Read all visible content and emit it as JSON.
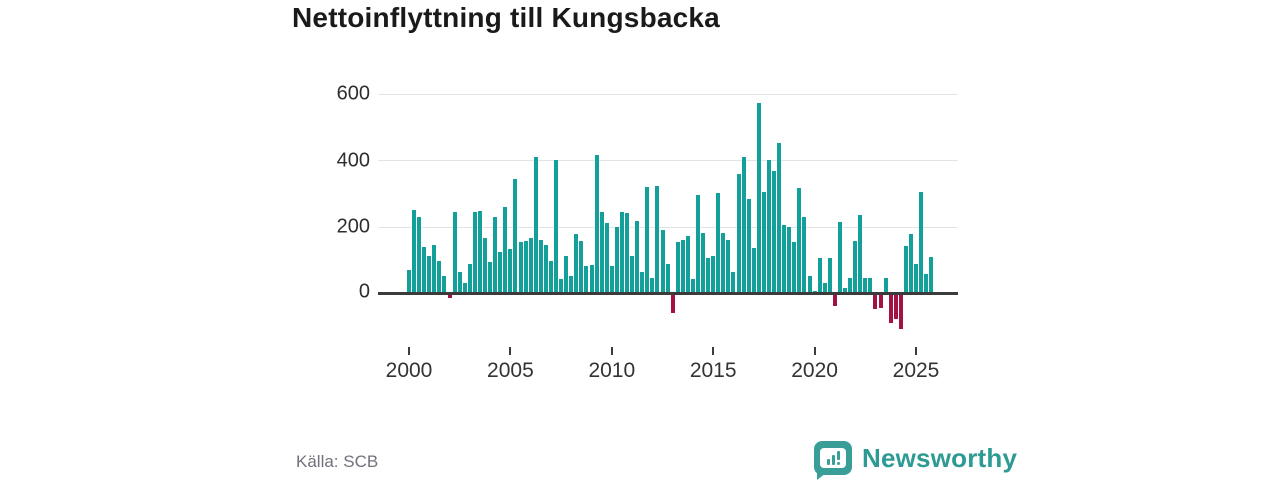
{
  "title": "Nettoinflyttning till Kungsbacka",
  "source": "Källa: SCB",
  "logo": {
    "brand": "Newsworthy"
  },
  "colors": {
    "positive_bar": "#13a09a",
    "negative_bar": "#a41244",
    "axis": "#3b3b3b",
    "grid": "#e3e3e3",
    "tick_text": "#333333",
    "muted_text": "#71717b",
    "brand": "#2d9a94",
    "title_text": "#1a1a1a"
  },
  "chart_data": {
    "type": "bar",
    "title": "Nettoinflyttning till Kungsbacka",
    "frequency": "quarterly",
    "start_quarter": "2000-Q1",
    "end_quarter": "2025-Q4",
    "values": [
      70,
      250,
      230,
      137,
      112,
      145,
      95,
      52,
      -12,
      245,
      63,
      30,
      88,
      245,
      247,
      165,
      94,
      230,
      123,
      260,
      132,
      342,
      152,
      155,
      165,
      410,
      160,
      145,
      95,
      400,
      42,
      110,
      50,
      178,
      155,
      82,
      85,
      415,
      245,
      212,
      82,
      200,
      245,
      240,
      110,
      218,
      62,
      320,
      45,
      322,
      190,
      88,
      -55,
      152,
      160,
      172,
      42,
      295,
      180,
      105,
      110,
      300,
      180,
      158,
      62,
      358,
      408,
      282,
      135,
      570,
      303,
      400,
      368,
      450,
      205,
      200,
      152,
      315,
      228,
      50,
      5,
      105,
      30,
      105,
      -35,
      215,
      15,
      45,
      155,
      235,
      45,
      45,
      -45,
      -40,
      45,
      -85,
      -75,
      -105,
      140,
      178,
      88,
      305,
      57,
      107
    ],
    "yticks": [
      0,
      200,
      400,
      600
    ],
    "ytick_labels": [
      "0",
      "200",
      "400",
      "600"
    ],
    "xticks": [
      2000,
      2005,
      2010,
      2015,
      2020,
      2025
    ],
    "xtick_labels": [
      "2000",
      "2005",
      "2010",
      "2015",
      "2020",
      "2025"
    ],
    "ylim": [
      -120,
      620
    ],
    "grid": true,
    "legend": "none",
    "positive_color": "#13a09a",
    "negative_color": "#a41244"
  }
}
